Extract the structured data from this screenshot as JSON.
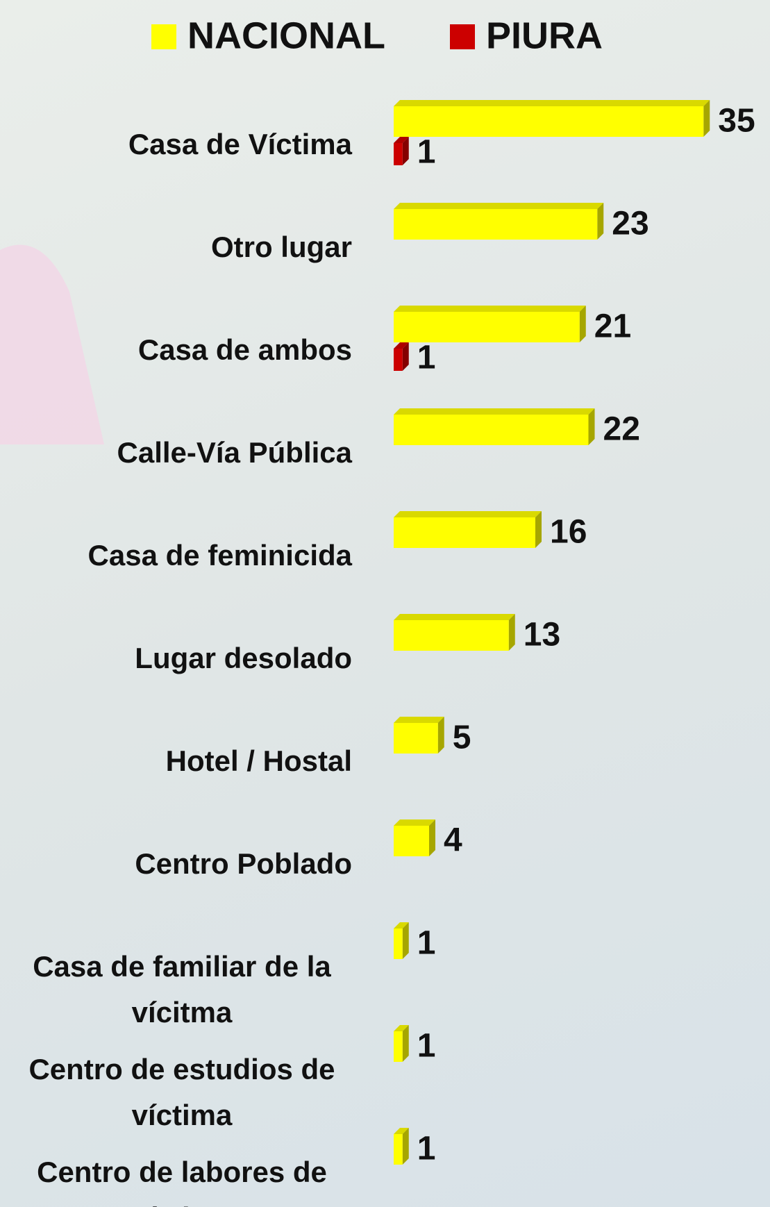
{
  "chart_data": {
    "type": "bar",
    "orientation": "horizontal",
    "categories": [
      "Casa de Víctima",
      "Otro lugar",
      "Casa de ambos",
      "Calle-Vía Pública",
      "Casa de feminicida",
      "Lugar desolado",
      "Hotel / Hostal",
      "Centro Poblado",
      "Casa de familiar de la vícitma",
      "Centro de estudios de víctima",
      "Centro de labores de víctima"
    ],
    "series": [
      {
        "name": "NACIONAL",
        "color": "#ffff00",
        "values": [
          35,
          23,
          21,
          22,
          16,
          13,
          5,
          4,
          1,
          1,
          1
        ]
      },
      {
        "name": "PIURA",
        "color": "#cc0000",
        "values": [
          1,
          null,
          1,
          null,
          null,
          null,
          null,
          null,
          null,
          null,
          null
        ]
      }
    ],
    "legend": "top"
  }
}
